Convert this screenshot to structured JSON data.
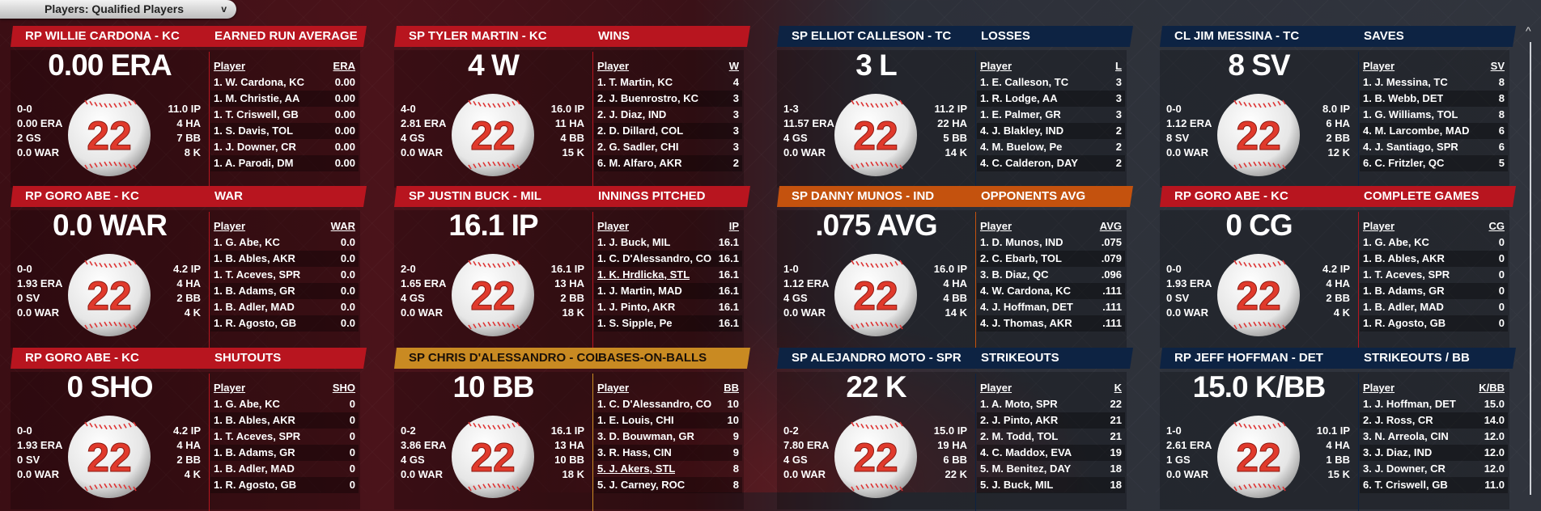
{
  "dropdown": {
    "label": "Players: Qualified Players",
    "icon": "chevron-down-icon",
    "chevron": "v"
  },
  "scrollbar": {
    "up_arrow": "^"
  },
  "colors": {
    "red": "#b8151f",
    "navy": "#0d2343",
    "orange": "#c4520e",
    "gold": "#c98a22",
    "ball_number": "#e03a2c"
  },
  "cards": [
    {
      "theme": "red",
      "player_header": "RP WILLIE CARDONA - KC",
      "category": "EARNED RUN AVERAGE",
      "big_stat": "0.00 ERA",
      "number": "22",
      "left_stats": [
        "0-0",
        "0.00 ERA",
        "2 GS",
        "0.0 WAR"
      ],
      "right_stats": [
        "11.0 IP",
        "4 HA",
        "7 BB",
        "8 K"
      ],
      "table": {
        "col_player": "Player",
        "col_stat": "ERA",
        "rows": [
          {
            "name": "1. W. Cardona, KC",
            "value": "0.00"
          },
          {
            "name": "1. M. Christie, AA",
            "value": "0.00"
          },
          {
            "name": "1. T. Criswell, GB",
            "value": "0.00"
          },
          {
            "name": "1. S. Davis, TOL",
            "value": "0.00"
          },
          {
            "name": "1. J. Downer, CR",
            "value": "0.00"
          },
          {
            "name": "1. A. Parodi, DM",
            "value": "0.00"
          }
        ]
      }
    },
    {
      "theme": "red",
      "player_header": "SP TYLER MARTIN - KC",
      "category": "WINS",
      "big_stat": "4 W",
      "number": "22",
      "left_stats": [
        "4-0",
        "2.81 ERA",
        "4 GS",
        "0.0 WAR"
      ],
      "right_stats": [
        "16.0 IP",
        "11 HA",
        "4 BB",
        "15 K"
      ],
      "table": {
        "col_player": "Player",
        "col_stat": "W",
        "rows": [
          {
            "name": "1. T. Martin, KC",
            "value": "4"
          },
          {
            "name": "2. J. Buenrostro, KC",
            "value": "3"
          },
          {
            "name": "2. J. Diaz, IND",
            "value": "3"
          },
          {
            "name": "2. D. Dillard, COL",
            "value": "3"
          },
          {
            "name": "2. G. Sadler, CHI",
            "value": "3"
          },
          {
            "name": "6. M. Alfaro, AKR",
            "value": "2"
          }
        ]
      }
    },
    {
      "theme": "navy",
      "player_header": "SP ELLIOT CALLESON - TC",
      "category": "LOSSES",
      "big_stat": "3 L",
      "number": "22",
      "left_stats": [
        "1-3",
        "11.57 ERA",
        "4 GS",
        "0.0 WAR"
      ],
      "right_stats": [
        "11.2 IP",
        "22 HA",
        "5 BB",
        "14 K"
      ],
      "table": {
        "col_player": "Player",
        "col_stat": "L",
        "rows": [
          {
            "name": "1. E. Calleson, TC",
            "value": "3"
          },
          {
            "name": "1. R. Lodge, AA",
            "value": "3"
          },
          {
            "name": "1. E. Palmer, GR",
            "value": "3"
          },
          {
            "name": "4. J. Blakley, IND",
            "value": "2"
          },
          {
            "name": "4. M. Buelow, Pe",
            "value": "2"
          },
          {
            "name": "4. C. Calderon, DAY",
            "value": "2"
          }
        ]
      }
    },
    {
      "theme": "navy",
      "player_header": "CL JIM MESSINA - TC",
      "category": "SAVES",
      "big_stat": "8 SV",
      "number": "22",
      "left_stats": [
        "0-0",
        "1.12 ERA",
        "8 SV",
        "0.0 WAR"
      ],
      "right_stats": [
        "8.0 IP",
        "6 HA",
        "2 BB",
        "12 K"
      ],
      "table": {
        "col_player": "Player",
        "col_stat": "SV",
        "rows": [
          {
            "name": "1. J. Messina, TC",
            "value": "8"
          },
          {
            "name": "1. B. Webb, DET",
            "value": "8"
          },
          {
            "name": "1. G. Williams, TOL",
            "value": "8"
          },
          {
            "name": "4. M. Larcombe, MAD",
            "value": "6"
          },
          {
            "name": "4. J. Santiago, SPR",
            "value": "6"
          },
          {
            "name": "6. C. Fritzler, QC",
            "value": "5"
          }
        ]
      }
    },
    {
      "theme": "red",
      "player_header": "RP GORO ABE - KC",
      "category": "WAR",
      "big_stat": "0.0 WAR",
      "number": "22",
      "left_stats": [
        "0-0",
        "1.93 ERA",
        "0 SV",
        "0.0 WAR"
      ],
      "right_stats": [
        "4.2 IP",
        "4 HA",
        "2 BB",
        "4 K"
      ],
      "table": {
        "col_player": "Player",
        "col_stat": "WAR",
        "rows": [
          {
            "name": "1. G. Abe, KC",
            "value": "0.0"
          },
          {
            "name": "1. B. Ables, AKR",
            "value": "0.0"
          },
          {
            "name": "1. T. Aceves, SPR",
            "value": "0.0"
          },
          {
            "name": "1. B. Adams, GR",
            "value": "0.0"
          },
          {
            "name": "1. B. Adler, MAD",
            "value": "0.0"
          },
          {
            "name": "1. R. Agosto, GB",
            "value": "0.0"
          }
        ]
      }
    },
    {
      "theme": "red",
      "player_header": "SP JUSTIN BUCK - MIL",
      "category": "INNINGS PITCHED",
      "big_stat": "16.1 IP",
      "number": "22",
      "left_stats": [
        "2-0",
        "1.65 ERA",
        "4 GS",
        "0.0 WAR"
      ],
      "right_stats": [
        "16.1 IP",
        "13 HA",
        "2 BB",
        "18 K"
      ],
      "table": {
        "col_player": "Player",
        "col_stat": "IP",
        "rows": [
          {
            "name": "1. J. Buck, MIL",
            "value": "16.1"
          },
          {
            "name": "1. C. D'Alessandro, CO",
            "value": "16.1"
          },
          {
            "name": "1. K. Hrdlicka, STL",
            "value": "16.1",
            "underline": true
          },
          {
            "name": "1. J. Martin, MAD",
            "value": "16.1"
          },
          {
            "name": "1. J. Pinto, AKR",
            "value": "16.1"
          },
          {
            "name": "1. S. Sipple, Pe",
            "value": "16.1"
          }
        ]
      }
    },
    {
      "theme": "orange",
      "player_header": "SP DANNY MUNOS - IND",
      "category": "OPPONENTS AVG",
      "big_stat": ".075 AVG",
      "number": "22",
      "left_stats": [
        "1-0",
        "1.12 ERA",
        "4 GS",
        "0.0 WAR"
      ],
      "right_stats": [
        "16.0 IP",
        "4 HA",
        "4 BB",
        "14 K"
      ],
      "table": {
        "col_player": "Player",
        "col_stat": "AVG",
        "rows": [
          {
            "name": "1. D. Munos, IND",
            "value": ".075"
          },
          {
            "name": "2. C. Ebarb, TOL",
            "value": ".079"
          },
          {
            "name": "3. B. Diaz, QC",
            "value": ".096"
          },
          {
            "name": "4. W. Cardona, KC",
            "value": ".111"
          },
          {
            "name": "4. J. Hoffman, DET",
            "value": ".111"
          },
          {
            "name": "4. J. Thomas, AKR",
            "value": ".111"
          }
        ]
      }
    },
    {
      "theme": "red",
      "player_header": "RP GORO ABE - KC",
      "category": "COMPLETE GAMES",
      "big_stat": "0 CG",
      "number": "22",
      "left_stats": [
        "0-0",
        "1.93 ERA",
        "0 SV",
        "0.0 WAR"
      ],
      "right_stats": [
        "4.2 IP",
        "4 HA",
        "2 BB",
        "4 K"
      ],
      "table": {
        "col_player": "Player",
        "col_stat": "CG",
        "rows": [
          {
            "name": "1. G. Abe, KC",
            "value": "0"
          },
          {
            "name": "1. B. Ables, AKR",
            "value": "0"
          },
          {
            "name": "1. T. Aceves, SPR",
            "value": "0"
          },
          {
            "name": "1. B. Adams, GR",
            "value": "0"
          },
          {
            "name": "1. B. Adler, MAD",
            "value": "0"
          },
          {
            "name": "1. R. Agosto, GB",
            "value": "0"
          }
        ]
      }
    },
    {
      "theme": "red",
      "player_header": "RP GORO ABE - KC",
      "category": "SHUTOUTS",
      "big_stat": "0 SHO",
      "number": "22",
      "left_stats": [
        "0-0",
        "1.93 ERA",
        "0 SV",
        "0.0 WAR"
      ],
      "right_stats": [
        "4.2 IP",
        "4 HA",
        "2 BB",
        "4 K"
      ],
      "table": {
        "col_player": "Player",
        "col_stat": "SHO",
        "rows": [
          {
            "name": "1. G. Abe, KC",
            "value": "0"
          },
          {
            "name": "1. B. Ables, AKR",
            "value": "0"
          },
          {
            "name": "1. T. Aceves, SPR",
            "value": "0"
          },
          {
            "name": "1. B. Adams, GR",
            "value": "0"
          },
          {
            "name": "1. B. Adler, MAD",
            "value": "0"
          },
          {
            "name": "1. R. Agosto, GB",
            "value": "0"
          }
        ]
      }
    },
    {
      "theme": "gold",
      "player_header": "SP CHRIS D'ALESSANDRO - COL",
      "category": "BASES-ON-BALLS",
      "big_stat": "10 BB",
      "number": "22",
      "left_stats": [
        "0-2",
        "3.86 ERA",
        "4 GS",
        "0.0 WAR"
      ],
      "right_stats": [
        "16.1 IP",
        "13 HA",
        "10 BB",
        "18 K"
      ],
      "table": {
        "col_player": "Player",
        "col_stat": "BB",
        "rows": [
          {
            "name": "1. C. D'Alessandro, CO",
            "value": "10"
          },
          {
            "name": "1. E. Louis, CHI",
            "value": "10"
          },
          {
            "name": "3. D. Bouwman, GR",
            "value": "9"
          },
          {
            "name": "3. R. Hass, CIN",
            "value": "9"
          },
          {
            "name": "5. J. Akers, STL",
            "value": "8",
            "underline": true
          },
          {
            "name": "5. J. Carney, ROC",
            "value": "8"
          }
        ]
      }
    },
    {
      "theme": "navy",
      "player_header": "SP ALEJANDRO MOTO - SPR",
      "category": "STRIKEOUTS",
      "big_stat": "22 K",
      "number": "22",
      "left_stats": [
        "0-2",
        "7.80 ERA",
        "4 GS",
        "0.0 WAR"
      ],
      "right_stats": [
        "15.0 IP",
        "19 HA",
        "6 BB",
        "22 K"
      ],
      "table": {
        "col_player": "Player",
        "col_stat": "K",
        "rows": [
          {
            "name": "1. A. Moto, SPR",
            "value": "22"
          },
          {
            "name": "2. J. Pinto, AKR",
            "value": "21"
          },
          {
            "name": "2. M. Todd, TOL",
            "value": "21"
          },
          {
            "name": "4. C. Maddox, EVA",
            "value": "19"
          },
          {
            "name": "5. M. Benitez, DAY",
            "value": "18"
          },
          {
            "name": "5. J. Buck, MIL",
            "value": "18"
          }
        ]
      }
    },
    {
      "theme": "navy",
      "player_header": "RP JEFF HOFFMAN - DET",
      "category": "STRIKEOUTS / BB",
      "big_stat": "15.0 K/BB",
      "number": "22",
      "left_stats": [
        "1-0",
        "2.61 ERA",
        "1 GS",
        "0.0 WAR"
      ],
      "right_stats": [
        "10.1 IP",
        "4 HA",
        "1 BB",
        "15 K"
      ],
      "table": {
        "col_player": "Player",
        "col_stat": "K/BB",
        "rows": [
          {
            "name": "1. J. Hoffman, DET",
            "value": "15.0"
          },
          {
            "name": "2. J. Ross, CR",
            "value": "14.0"
          },
          {
            "name": "3. N. Arreola, CIN",
            "value": "12.0"
          },
          {
            "name": "3. J. Diaz, IND",
            "value": "12.0"
          },
          {
            "name": "3. J. Downer, CR",
            "value": "12.0"
          },
          {
            "name": "6. T. Criswell, GB",
            "value": "11.0"
          }
        ]
      }
    }
  ]
}
